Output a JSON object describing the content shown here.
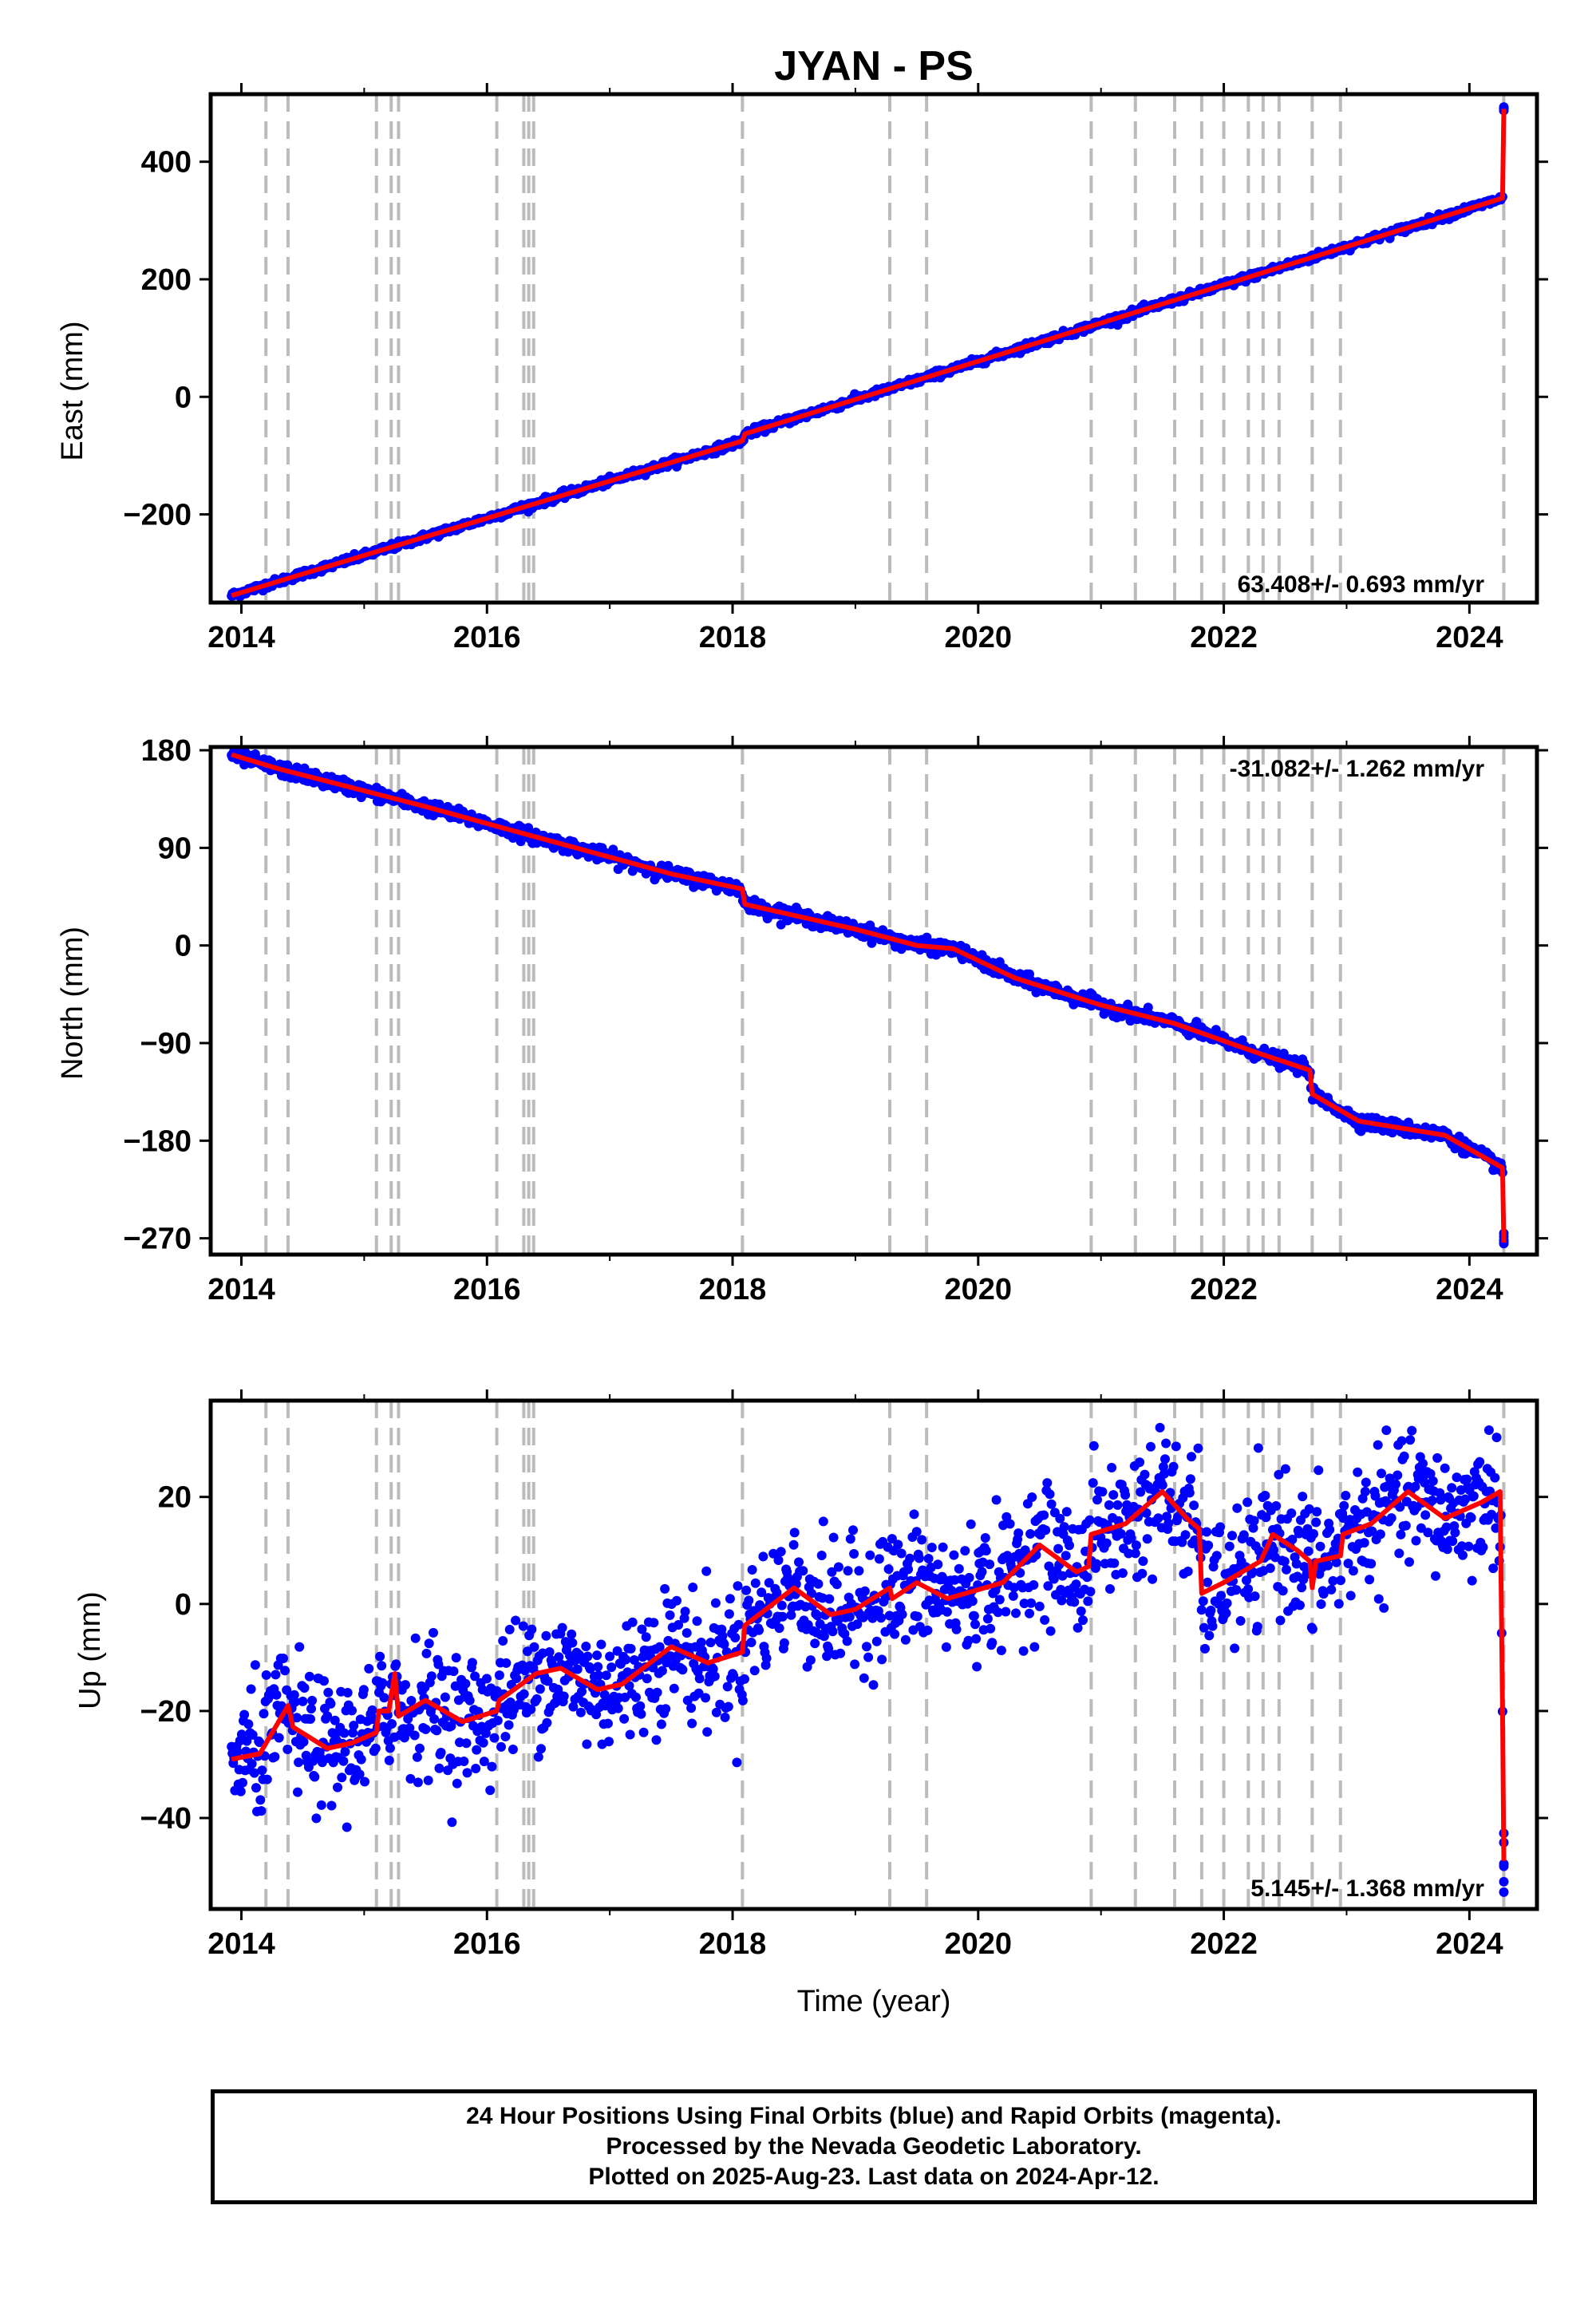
{
  "title": "JYAN - PS",
  "caption": {
    "line1": "24 Hour Positions Using Final Orbits (blue) and Rapid Orbits (magenta).",
    "line2": "Processed by the Nevada Geodetic Laboratory.",
    "line3": "Plotted on 2025-Aug-23. Last data on 2024-Apr-12."
  },
  "colors": {
    "points": "#0000ff",
    "model": "#ff0000",
    "steps": "#bbbbbb"
  },
  "chart_data": [
    {
      "type": "scatter",
      "component": "east",
      "ylabel": "East (mm)",
      "xlabel": "",
      "xlim": [
        2013.75,
        2024.55
      ],
      "ylim": [
        -350,
        515
      ],
      "yticks": [
        -200,
        0,
        200,
        400
      ],
      "xticks": [
        2014,
        2016,
        2018,
        2020,
        2022,
        2024
      ],
      "rate_text": "63.408+/- 0.693 mm/yr",
      "rate_position": "bottom-right",
      "model": [
        [
          2013.92,
          -338
        ],
        [
          2018.08,
          -75
        ],
        [
          2018.1,
          -63
        ],
        [
          2024.27,
          338
        ],
        [
          2024.28,
          490
        ]
      ],
      "noise": 3,
      "grid": false
    },
    {
      "type": "scatter",
      "component": "north",
      "ylabel": "North (mm)",
      "xlabel": "",
      "xlim": [
        2013.75,
        2024.55
      ],
      "ylim": [
        -285,
        183
      ],
      "yticks": [
        -270,
        -180,
        -90,
        0,
        90,
        180
      ],
      "xticks": [
        2014,
        2016,
        2018,
        2020,
        2022,
        2024
      ],
      "rate_text": "-31.082+/- 1.262 mm/yr",
      "rate_position": "top-right",
      "model": [
        [
          2013.92,
          176
        ],
        [
          2014.3,
          163
        ],
        [
          2015.5,
          128
        ],
        [
          2016.4,
          100
        ],
        [
          2017.5,
          66
        ],
        [
          2018.08,
          52
        ],
        [
          2018.1,
          38
        ],
        [
          2019.0,
          15
        ],
        [
          2019.5,
          0
        ],
        [
          2019.8,
          -3
        ],
        [
          2020.3,
          -30
        ],
        [
          2021.0,
          -55
        ],
        [
          2021.6,
          -72
        ],
        [
          2022.3,
          -100
        ],
        [
          2022.7,
          -115
        ],
        [
          2022.72,
          -137
        ],
        [
          2023.1,
          -162
        ],
        [
          2023.8,
          -175
        ],
        [
          2024.27,
          -205
        ],
        [
          2024.28,
          -274
        ]
      ],
      "noise": 3,
      "grid": false
    },
    {
      "type": "scatter",
      "component": "up",
      "ylabel": "Up (mm)",
      "xlabel": "Time (year)",
      "xlim": [
        2013.75,
        2024.55
      ],
      "ylim": [
        -57,
        38
      ],
      "yticks": [
        -40,
        -20,
        0,
        20
      ],
      "xticks": [
        2014,
        2016,
        2018,
        2020,
        2022,
        2024
      ],
      "rate_text": "5.145+/- 1.368 mm/yr",
      "rate_position": "bottom-right",
      "model": [
        [
          2013.92,
          -29
        ],
        [
          2014.15,
          -28
        ],
        [
          2014.38,
          -19
        ],
        [
          2014.42,
          -23
        ],
        [
          2014.7,
          -27
        ],
        [
          2014.9,
          -26
        ],
        [
          2015.1,
          -24
        ],
        [
          2015.12,
          -20
        ],
        [
          2015.2,
          -20
        ],
        [
          2015.25,
          -13
        ],
        [
          2015.28,
          -21
        ],
        [
          2015.5,
          -18
        ],
        [
          2015.8,
          -22
        ],
        [
          2016.08,
          -20
        ],
        [
          2016.1,
          -18
        ],
        [
          2016.4,
          -13
        ],
        [
          2016.6,
          -12
        ],
        [
          2016.9,
          -16
        ],
        [
          2017.1,
          -15
        ],
        [
          2017.5,
          -8
        ],
        [
          2017.8,
          -11
        ],
        [
          2018.08,
          -9
        ],
        [
          2018.1,
          -4
        ],
        [
          2018.5,
          3
        ],
        [
          2018.8,
          -2
        ],
        [
          2019.0,
          -1
        ],
        [
          2019.28,
          3
        ],
        [
          2019.3,
          1
        ],
        [
          2019.5,
          4
        ],
        [
          2019.75,
          1
        ],
        [
          2020.2,
          4
        ],
        [
          2020.5,
          11
        ],
        [
          2020.8,
          6
        ],
        [
          2020.9,
          7
        ],
        [
          2020.92,
          13
        ],
        [
          2021.2,
          15
        ],
        [
          2021.5,
          21
        ],
        [
          2021.7,
          16
        ],
        [
          2021.8,
          14
        ],
        [
          2021.82,
          2
        ],
        [
          2022.0,
          4
        ],
        [
          2022.3,
          8
        ],
        [
          2022.4,
          13
        ],
        [
          2022.6,
          10
        ],
        [
          2022.7,
          8
        ],
        [
          2022.72,
          3
        ],
        [
          2022.75,
          8
        ],
        [
          2022.95,
          9
        ],
        [
          2022.97,
          13
        ],
        [
          2023.2,
          15
        ],
        [
          2023.5,
          21
        ],
        [
          2023.8,
          16
        ],
        [
          2024.1,
          19
        ],
        [
          2024.25,
          21
        ],
        [
          2024.27,
          -20
        ],
        [
          2024.28,
          -48
        ]
      ],
      "noise": 6,
      "grid": false
    }
  ],
  "steps": [
    2014.2,
    2014.38,
    2015.1,
    2015.22,
    2015.28,
    2016.08,
    2016.3,
    2016.34,
    2016.38,
    2018.08,
    2019.28,
    2019.58,
    2020.92,
    2021.28,
    2021.6,
    2021.82,
    2022.0,
    2022.2,
    2022.32,
    2022.45,
    2022.72,
    2022.95,
    2024.28
  ]
}
